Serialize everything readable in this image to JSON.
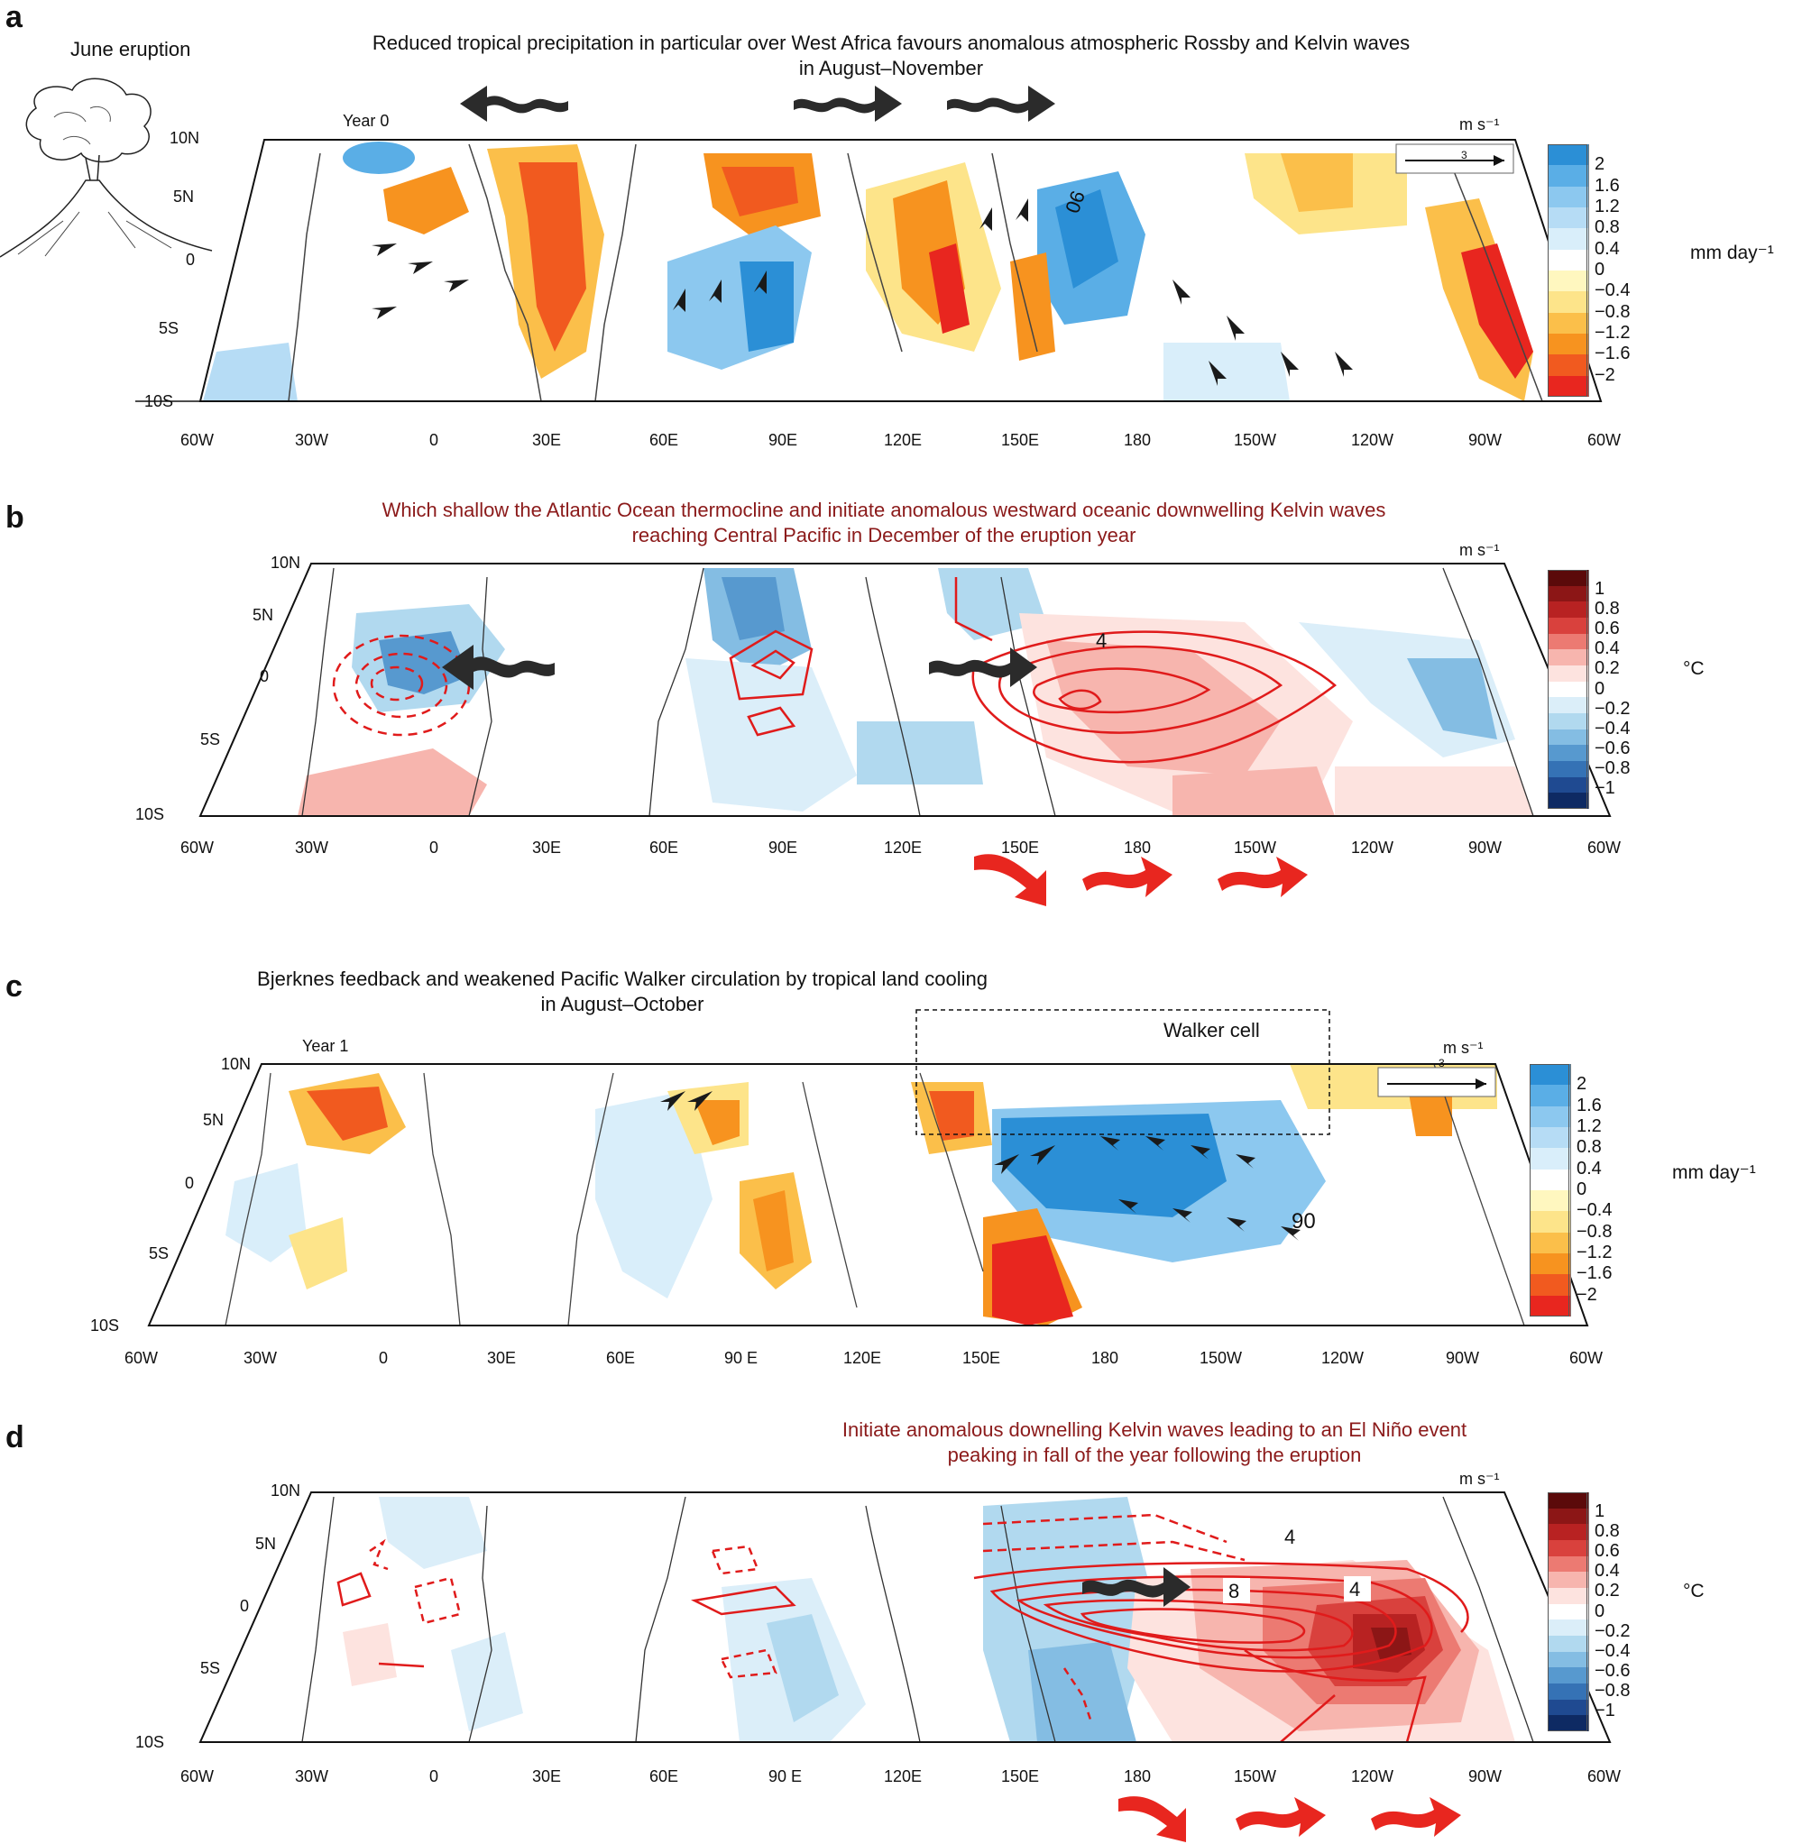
{
  "panels": {
    "a": {
      "letter": "a",
      "caption_line1": "Reduced tropical precipitation in particular over West Africa favours anomalous atmospheric Rossby and Kelvin waves",
      "caption_line2": "in August–November",
      "year_label": "Year 0",
      "inset_title": "June eruption",
      "wind_unit": "m s⁻¹",
      "ref_vector": "3",
      "contour_label": "06"
    },
    "b": {
      "letter": "b",
      "caption_line1": "Which shallow the Atlantic Ocean thermocline and initiate anomalous westward oceanic downwelling Kelvin waves",
      "caption_line2": "reaching Central Pacific in December of the eruption year",
      "wind_unit": "m s⁻¹",
      "contour_label": "4"
    },
    "c": {
      "letter": "c",
      "caption_line1": "Bjerknes feedback and weakened Pacific Walker circulation by tropical land cooling",
      "caption_line2": "in August–October",
      "year_label": "Year 1",
      "box_label": "Walker cell",
      "wind_unit": "m s⁻¹",
      "ref_vector": "3",
      "contour_label": "90"
    },
    "d": {
      "letter": "d",
      "caption_line1": "Initiate anomalous downelling Kelvin waves leading to an El Niño event",
      "caption_line2": "peaking in fall of the year following the eruption",
      "wind_unit": "m s⁻¹",
      "contour_labels": [
        "4",
        "8",
        "4"
      ]
    }
  },
  "axes": {
    "lat_ticks": [
      "10N",
      "5N",
      "0",
      "5S",
      "10S"
    ],
    "lon_ticks_ab": [
      "60W",
      "30W",
      "0",
      "30E",
      "60E",
      "90E",
      "120E",
      "150E",
      "180",
      "150W",
      "120W",
      "90W",
      "60W"
    ],
    "lon_ticks_cd": [
      "60W",
      "30W",
      "0",
      "30E",
      "60E",
      "90 E",
      "120E",
      "150E",
      "180",
      "150W",
      "120W",
      "90W",
      "60W"
    ]
  },
  "legends": {
    "precip": {
      "unit": "mm day⁻¹",
      "labels": [
        "2",
        "1.6",
        "1.2",
        "0.8",
        "0.4",
        "0",
        "−0.4",
        "−0.8",
        "−1.2",
        "−1.6",
        "−2"
      ],
      "colors": [
        "#2b8fd6",
        "#5aaee6",
        "#8cc8ef",
        "#b6dcf5",
        "#d9eefa",
        "#ffffff",
        "#fff7bf",
        "#fde48a",
        "#fbbf4a",
        "#f7931f",
        "#f15a1f",
        "#e8261f"
      ]
    },
    "temp": {
      "unit": "°C",
      "labels": [
        "1",
        "0.8",
        "0.6",
        "0.4",
        "0.2",
        "0",
        "−0.2",
        "−0.4",
        "−0.6",
        "−0.8",
        "−1"
      ],
      "colors": [
        "#5b0a0a",
        "#8c1616",
        "#b82222",
        "#d9413d",
        "#ec7a72",
        "#f7b5ae",
        "#fde3df",
        "#ffffff",
        "#dbeef9",
        "#b1d9ef",
        "#84bde3",
        "#5799cf",
        "#3572b5",
        "#1f4a91",
        "#0e2a63"
      ]
    }
  }
}
